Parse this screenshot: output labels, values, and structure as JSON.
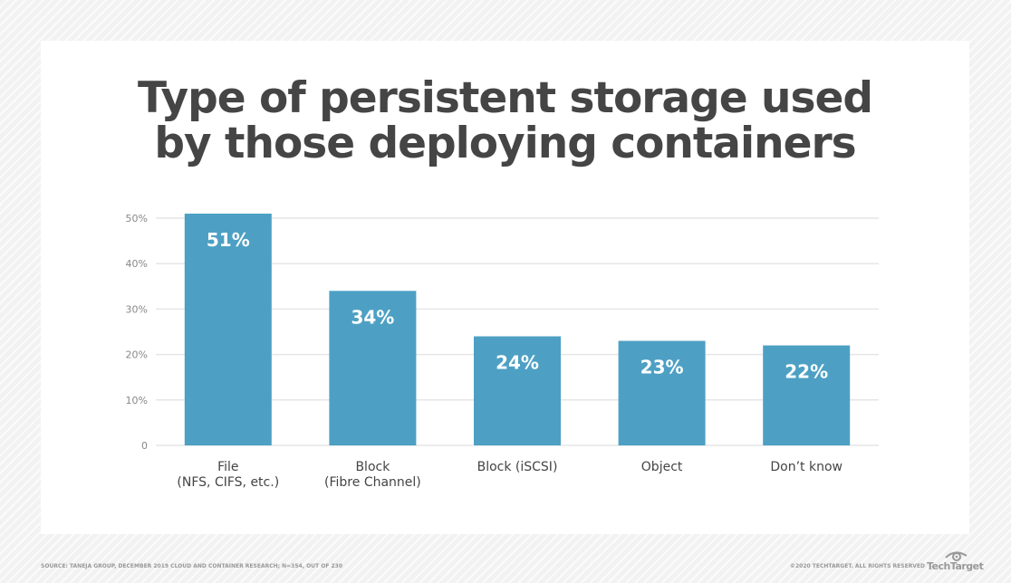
{
  "chart_data": {
    "type": "bar",
    "title": "Type of persistent storage used by those deploying containers",
    "title_lines": [
      "Type of persistent storage used",
      "by those deploying containers"
    ],
    "categories": [
      [
        "File",
        "(NFS, CIFS, etc.)"
      ],
      [
        "Block",
        "(Fibre Channel)"
      ],
      [
        "Block (iSCSI)"
      ],
      [
        "Object"
      ],
      [
        "Don’t know"
      ]
    ],
    "values": [
      51,
      34,
      24,
      23,
      22
    ],
    "data_labels": [
      "51%",
      "34%",
      "24%",
      "23%",
      "22%"
    ],
    "yticks": [
      "0",
      "10%",
      "20%",
      "30%",
      "40%",
      "50%"
    ],
    "ylim": [
      0,
      50
    ],
    "grid": true,
    "xlabel": "",
    "ylabel": "",
    "bar_color": "#4da0c4"
  },
  "footer": {
    "source": "SOURCE: TANEJA GROUP, DECEMBER 2019 CLOUD AND CONTAINER RESEARCH; N=354, OUT OF 230",
    "copyright": "©2020 TECHTARGET. ALL RIGHTS RESERVED",
    "logo": "TechTarget"
  }
}
